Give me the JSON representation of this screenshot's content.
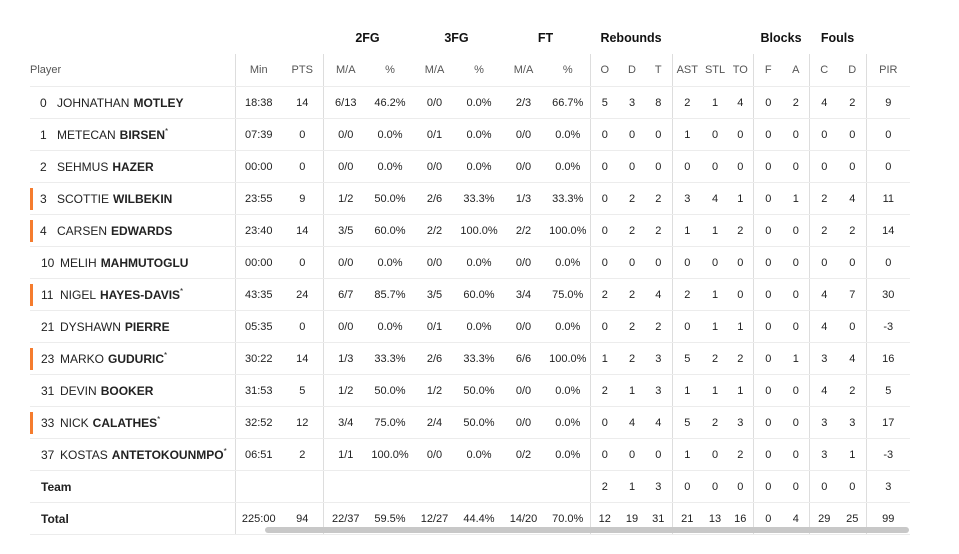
{
  "groups": {
    "fg2": "2FG",
    "fg3": "3FG",
    "ft": "FT",
    "reb": "Rebounds",
    "blocks": "Blocks",
    "fouls": "Fouls"
  },
  "headers": [
    "Player",
    "Min",
    "PTS",
    "M/A",
    "%",
    "M/A",
    "%",
    "M/A",
    "%",
    "O",
    "D",
    "T",
    "AST",
    "STL",
    "TO",
    "F",
    "A",
    "C",
    "D",
    "PIR"
  ],
  "players": [
    {
      "num": "0",
      "first": "JOHNATHAN",
      "last": "MOTLEY",
      "star": "",
      "starter": false,
      "stats": [
        "18:38",
        "14",
        "6/13",
        "46.2%",
        "0/0",
        "0.0%",
        "2/3",
        "66.7%",
        "5",
        "3",
        "8",
        "2",
        "1",
        "4",
        "0",
        "2",
        "4",
        "2",
        "9"
      ]
    },
    {
      "num": "1",
      "first": "METECAN",
      "last": "BIRSEN",
      "star": "*",
      "starter": false,
      "stats": [
        "07:39",
        "0",
        "0/0",
        "0.0%",
        "0/1",
        "0.0%",
        "0/0",
        "0.0%",
        "0",
        "0",
        "0",
        "1",
        "0",
        "0",
        "0",
        "0",
        "0",
        "0",
        "0"
      ]
    },
    {
      "num": "2",
      "first": "SEHMUS",
      "last": "HAZER",
      "star": "",
      "starter": false,
      "stats": [
        "00:00",
        "0",
        "0/0",
        "0.0%",
        "0/0",
        "0.0%",
        "0/0",
        "0.0%",
        "0",
        "0",
        "0",
        "0",
        "0",
        "0",
        "0",
        "0",
        "0",
        "0",
        "0"
      ]
    },
    {
      "num": "3",
      "first": "SCOTTIE",
      "last": "WILBEKIN",
      "star": "",
      "starter": true,
      "stats": [
        "23:55",
        "9",
        "1/2",
        "50.0%",
        "2/6",
        "33.3%",
        "1/3",
        "33.3%",
        "0",
        "2",
        "2",
        "3",
        "4",
        "1",
        "0",
        "1",
        "2",
        "4",
        "11"
      ]
    },
    {
      "num": "4",
      "first": "CARSEN",
      "last": "EDWARDS",
      "star": "",
      "starter": true,
      "stats": [
        "23:40",
        "14",
        "3/5",
        "60.0%",
        "2/2",
        "100.0%",
        "2/2",
        "100.0%",
        "0",
        "2",
        "2",
        "1",
        "1",
        "2",
        "0",
        "0",
        "2",
        "2",
        "14"
      ]
    },
    {
      "num": "10",
      "first": "MELIH",
      "last": "MAHMUTOGLU",
      "star": "",
      "starter": false,
      "stats": [
        "00:00",
        "0",
        "0/0",
        "0.0%",
        "0/0",
        "0.0%",
        "0/0",
        "0.0%",
        "0",
        "0",
        "0",
        "0",
        "0",
        "0",
        "0",
        "0",
        "0",
        "0",
        "0"
      ]
    },
    {
      "num": "11",
      "first": "NIGEL",
      "last": "HAYES-DAVIS",
      "star": "*",
      "starter": true,
      "stats": [
        "43:35",
        "24",
        "6/7",
        "85.7%",
        "3/5",
        "60.0%",
        "3/4",
        "75.0%",
        "2",
        "2",
        "4",
        "2",
        "1",
        "0",
        "0",
        "0",
        "4",
        "7",
        "30"
      ]
    },
    {
      "num": "21",
      "first": "DYSHAWN",
      "last": "PIERRE",
      "star": "",
      "starter": false,
      "stats": [
        "05:35",
        "0",
        "0/0",
        "0.0%",
        "0/1",
        "0.0%",
        "0/0",
        "0.0%",
        "0",
        "2",
        "2",
        "0",
        "1",
        "1",
        "0",
        "0",
        "4",
        "0",
        "-3"
      ]
    },
    {
      "num": "23",
      "first": "MARKO",
      "last": "GUDURIC",
      "star": "*",
      "starter": true,
      "stats": [
        "30:22",
        "14",
        "1/3",
        "33.3%",
        "2/6",
        "33.3%",
        "6/6",
        "100.0%",
        "1",
        "2",
        "3",
        "5",
        "2",
        "2",
        "0",
        "1",
        "3",
        "4",
        "16"
      ]
    },
    {
      "num": "31",
      "first": "DEVIN",
      "last": "BOOKER",
      "star": "",
      "starter": false,
      "stats": [
        "31:53",
        "5",
        "1/2",
        "50.0%",
        "1/2",
        "50.0%",
        "0/0",
        "0.0%",
        "2",
        "1",
        "3",
        "1",
        "1",
        "1",
        "0",
        "0",
        "4",
        "2",
        "5"
      ]
    },
    {
      "num": "33",
      "first": "NICK",
      "last": "CALATHES",
      "star": "*",
      "starter": true,
      "stats": [
        "32:52",
        "12",
        "3/4",
        "75.0%",
        "2/4",
        "50.0%",
        "0/0",
        "0.0%",
        "0",
        "4",
        "4",
        "5",
        "2",
        "3",
        "0",
        "0",
        "3",
        "3",
        "17"
      ]
    },
    {
      "num": "37",
      "first": "KOSTAS",
      "last": "ANTETOKOUNMPO",
      "star": "*",
      "starter": false,
      "stats": [
        "06:51",
        "2",
        "1/1",
        "100.0%",
        "0/0",
        "0.0%",
        "0/2",
        "0.0%",
        "0",
        "0",
        "0",
        "1",
        "0",
        "2",
        "0",
        "0",
        "3",
        "1",
        "-3"
      ]
    }
  ],
  "team": {
    "label": "Team",
    "stats": [
      "",
      "",
      "",
      "",
      "",
      "",
      "",
      "",
      "2",
      "1",
      "3",
      "0",
      "0",
      "0",
      "0",
      "0",
      "0",
      "0",
      "3"
    ]
  },
  "total": {
    "label": "Total",
    "stats": [
      "225:00",
      "94",
      "22/37",
      "59.5%",
      "12/27",
      "44.4%",
      "14/20",
      "70.0%",
      "12",
      "19",
      "31",
      "21",
      "13",
      "16",
      "0",
      "4",
      "29",
      "25",
      "99"
    ]
  },
  "colors": {
    "starter_bar": "#f57c2e",
    "separator": "#dddddd",
    "row_border": "#ececec",
    "scrollbar": "#c8c8c8"
  }
}
